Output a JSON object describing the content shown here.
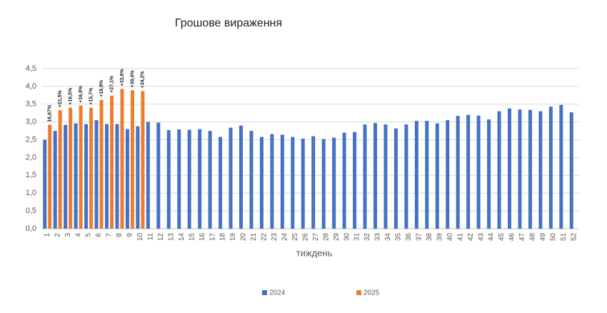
{
  "chart_data": {
    "type": "bar",
    "title": "Грошове вираження",
    "x_label": "тиждень",
    "categories": [
      "1",
      "2",
      "3",
      "4",
      "5",
      "6",
      "7",
      "8",
      "9",
      "10",
      "11",
      "12",
      "13",
      "14",
      "15",
      "16",
      "17",
      "18",
      "19",
      "20",
      "21",
      "22",
      "23",
      "24",
      "25",
      "26",
      "27",
      "28",
      "29",
      "30",
      "31",
      "32",
      "33",
      "34",
      "35",
      "36",
      "37",
      "38",
      "39",
      "40",
      "41",
      "42",
      "43",
      "44",
      "45",
      "46",
      "47",
      "48",
      "49",
      "50",
      "51",
      "52"
    ],
    "series": [
      {
        "name": "2024",
        "color": "#4472c4",
        "values": [
          2.5,
          2.75,
          2.92,
          2.96,
          2.94,
          3.05,
          2.94,
          2.94,
          2.8,
          2.88,
          3.0,
          2.98,
          2.77,
          2.79,
          2.78,
          2.8,
          2.75,
          2.58,
          2.84,
          2.9,
          2.75,
          2.58,
          2.66,
          2.64,
          2.58,
          2.53,
          2.6,
          2.52,
          2.56,
          2.7,
          2.72,
          2.93,
          2.97,
          2.93,
          2.82,
          2.93,
          3.03,
          3.03,
          2.96,
          3.05,
          3.17,
          3.2,
          3.18,
          3.07,
          3.3,
          3.38,
          3.35,
          3.34,
          3.3,
          3.43,
          3.48,
          3.27
        ]
      },
      {
        "name": "2025",
        "color": "#ed7d31",
        "values": [
          2.92,
          3.33,
          3.4,
          3.46,
          3.4,
          3.62,
          3.74,
          3.93,
          3.89,
          3.87,
          null,
          null,
          null,
          null,
          null,
          null,
          null,
          null,
          null,
          null,
          null,
          null,
          null,
          null,
          null,
          null,
          null,
          null,
          null,
          null,
          null,
          null,
          null,
          null,
          null,
          null,
          null,
          null,
          null,
          null,
          null,
          null,
          null,
          null,
          null,
          null,
          null,
          null,
          null,
          null,
          null,
          null
        ],
        "annotations": [
          "16,67%",
          "+21,5%",
          "+16,5%",
          "+16,9%",
          "+15,7%",
          "+18,9%",
          "+27,1%",
          "+33,9%",
          "+39,0%",
          "+34,2%"
        ]
      }
    ],
    "ylim": [
      0,
      4.5
    ],
    "yticks": [
      {
        "value": 0,
        "label": "0,0"
      },
      {
        "value": 0.5,
        "label": "0,5"
      },
      {
        "value": 1,
        "label": "1,0"
      },
      {
        "value": 1.5,
        "label": "1,5"
      },
      {
        "value": 2,
        "label": "2,0"
      },
      {
        "value": 2.5,
        "label": "2,5"
      },
      {
        "value": 3,
        "label": "3,0"
      },
      {
        "value": 3.5,
        "label": "3,5"
      },
      {
        "value": 4,
        "label": "4,0"
      },
      {
        "value": 4.5,
        "label": "4,5"
      }
    ],
    "grid": true,
    "legend": "bottom"
  }
}
